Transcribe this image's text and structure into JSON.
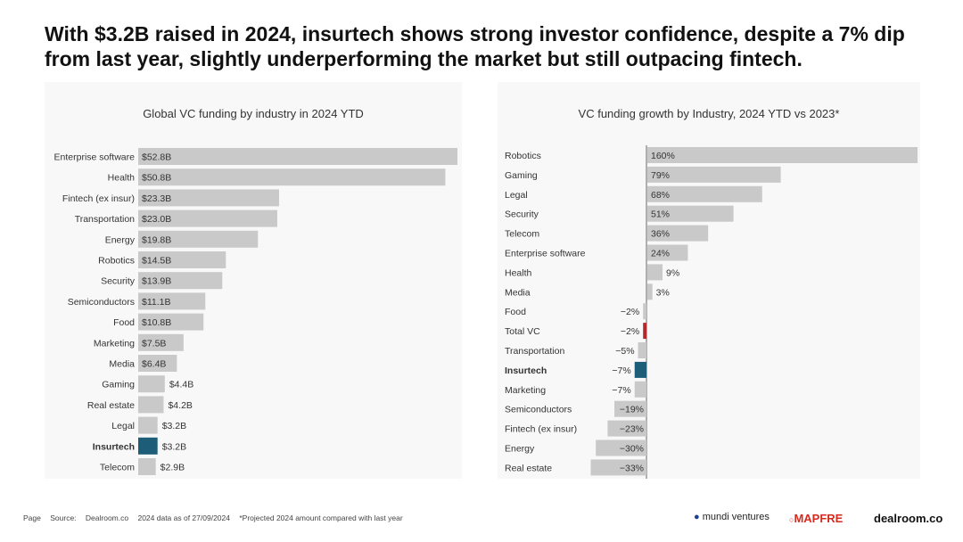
{
  "title": "With $3.2B raised in 2024, insurtech shows strong investor confidence, despite a 7% dip from last year, slightly underperforming the market but still outpacing fintech.",
  "colors": {
    "bar": "#c9c9c9",
    "highlight": "#1d5d78",
    "total": "#b3282d"
  },
  "chart_data": [
    {
      "type": "bar",
      "orientation": "horizontal",
      "title": "Global VC funding by industry in 2024 YTD",
      "unit": "$B",
      "categories": [
        "Enterprise software",
        "Health",
        "Fintech (ex insur)",
        "Transportation",
        "Energy",
        "Robotics",
        "Security",
        "Semiconductors",
        "Food",
        "Marketing",
        "Media",
        "Gaming",
        "Real estate",
        "Legal",
        "Insurtech",
        "Telecom"
      ],
      "values": [
        52.8,
        50.8,
        23.3,
        23.0,
        19.8,
        14.5,
        13.9,
        11.1,
        10.8,
        7.5,
        6.4,
        4.4,
        4.2,
        3.2,
        3.2,
        2.9
      ],
      "labels": [
        "$52.8B",
        "$50.8B",
        "$23.3B",
        "$23.0B",
        "$19.8B",
        "$14.5B",
        "$13.9B",
        "$11.1B",
        "$10.8B",
        "$7.5B",
        "$6.4B",
        "$4.4B",
        "$4.2B",
        "$3.2B",
        "$3.2B",
        "$2.9B"
      ],
      "highlight": "Insurtech"
    },
    {
      "type": "bar",
      "orientation": "horizontal",
      "title": "VC funding growth by Industry, 2024 YTD vs 2023*",
      "unit": "%",
      "categories": [
        "Robotics",
        "Gaming",
        "Legal",
        "Security",
        "Telecom",
        "Enterprise software",
        "Health",
        "Media",
        "Food",
        "Total VC",
        "Transportation",
        "Insurtech",
        "Marketing",
        "Semiconductors",
        "Fintech (ex insur)",
        "Energy",
        "Real estate"
      ],
      "values": [
        160,
        79,
        68,
        51,
        36,
        24,
        9,
        3,
        -2,
        -2,
        -5,
        -7,
        -7,
        -19,
        -23,
        -30,
        -33
      ],
      "labels": [
        "160%",
        "79%",
        "68%",
        "51%",
        "36%",
        "24%",
        "9%",
        "3%",
        "−2%",
        "−2%",
        "−5%",
        "−7%",
        "−7%",
        "−19%",
        "−23%",
        "−30%",
        "−33%"
      ],
      "highlight": "Insurtech",
      "total": "Total VC"
    }
  ],
  "footer": {
    "page": "Page",
    "source": "Source:",
    "source_name": "Dealroom.co",
    "date_note": "2024 data as of 27/09/2024",
    "footnote": "*Projected 2024 amount compared with last year"
  },
  "logos": {
    "mundi": "mundi ventures",
    "mapfre": "MAPFRE",
    "dealroom": "dealroom.co"
  }
}
